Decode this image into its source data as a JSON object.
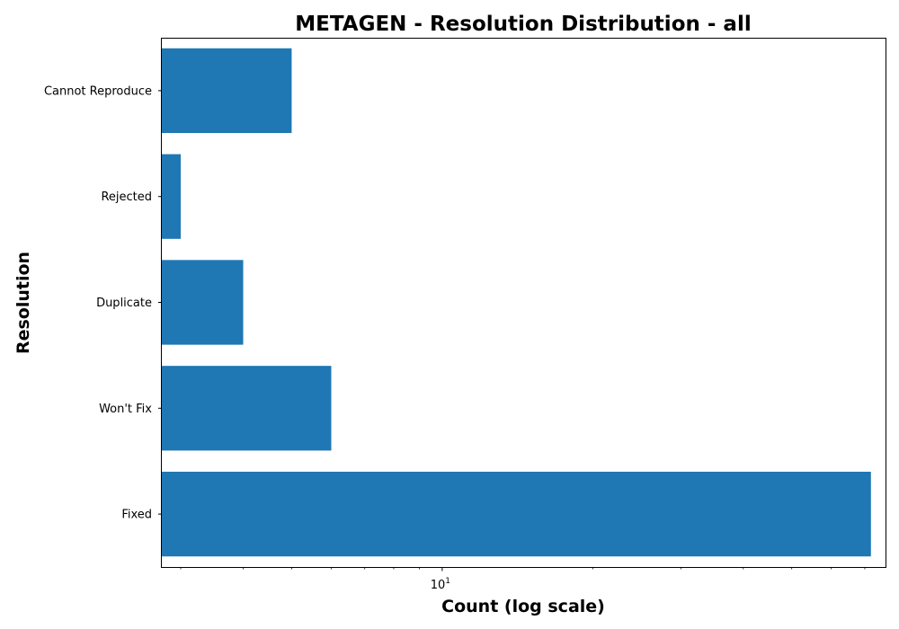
{
  "chart_data": {
    "type": "bar",
    "orientation": "horizontal",
    "title": "METAGEN - Resolution Distribution - all",
    "xlabel": "Count (log scale)",
    "ylabel": "Resolution",
    "x_scale": "log",
    "xlim": [
      2.75,
      77
    ],
    "categories": [
      "Fixed",
      "Won't Fix",
      "Duplicate",
      "Rejected",
      "Cannot Reproduce"
    ],
    "values": [
      72,
      6,
      4,
      3,
      5
    ],
    "x_major_ticks": [
      {
        "value": 10,
        "base": "10",
        "exponent": "1"
      }
    ],
    "x_minor_ticks": [
      3,
      4,
      5,
      6,
      7,
      8,
      9,
      20,
      30,
      40,
      50,
      60,
      70
    ],
    "bar_color": "#1f77b4",
    "grid": false,
    "legend": "none"
  }
}
